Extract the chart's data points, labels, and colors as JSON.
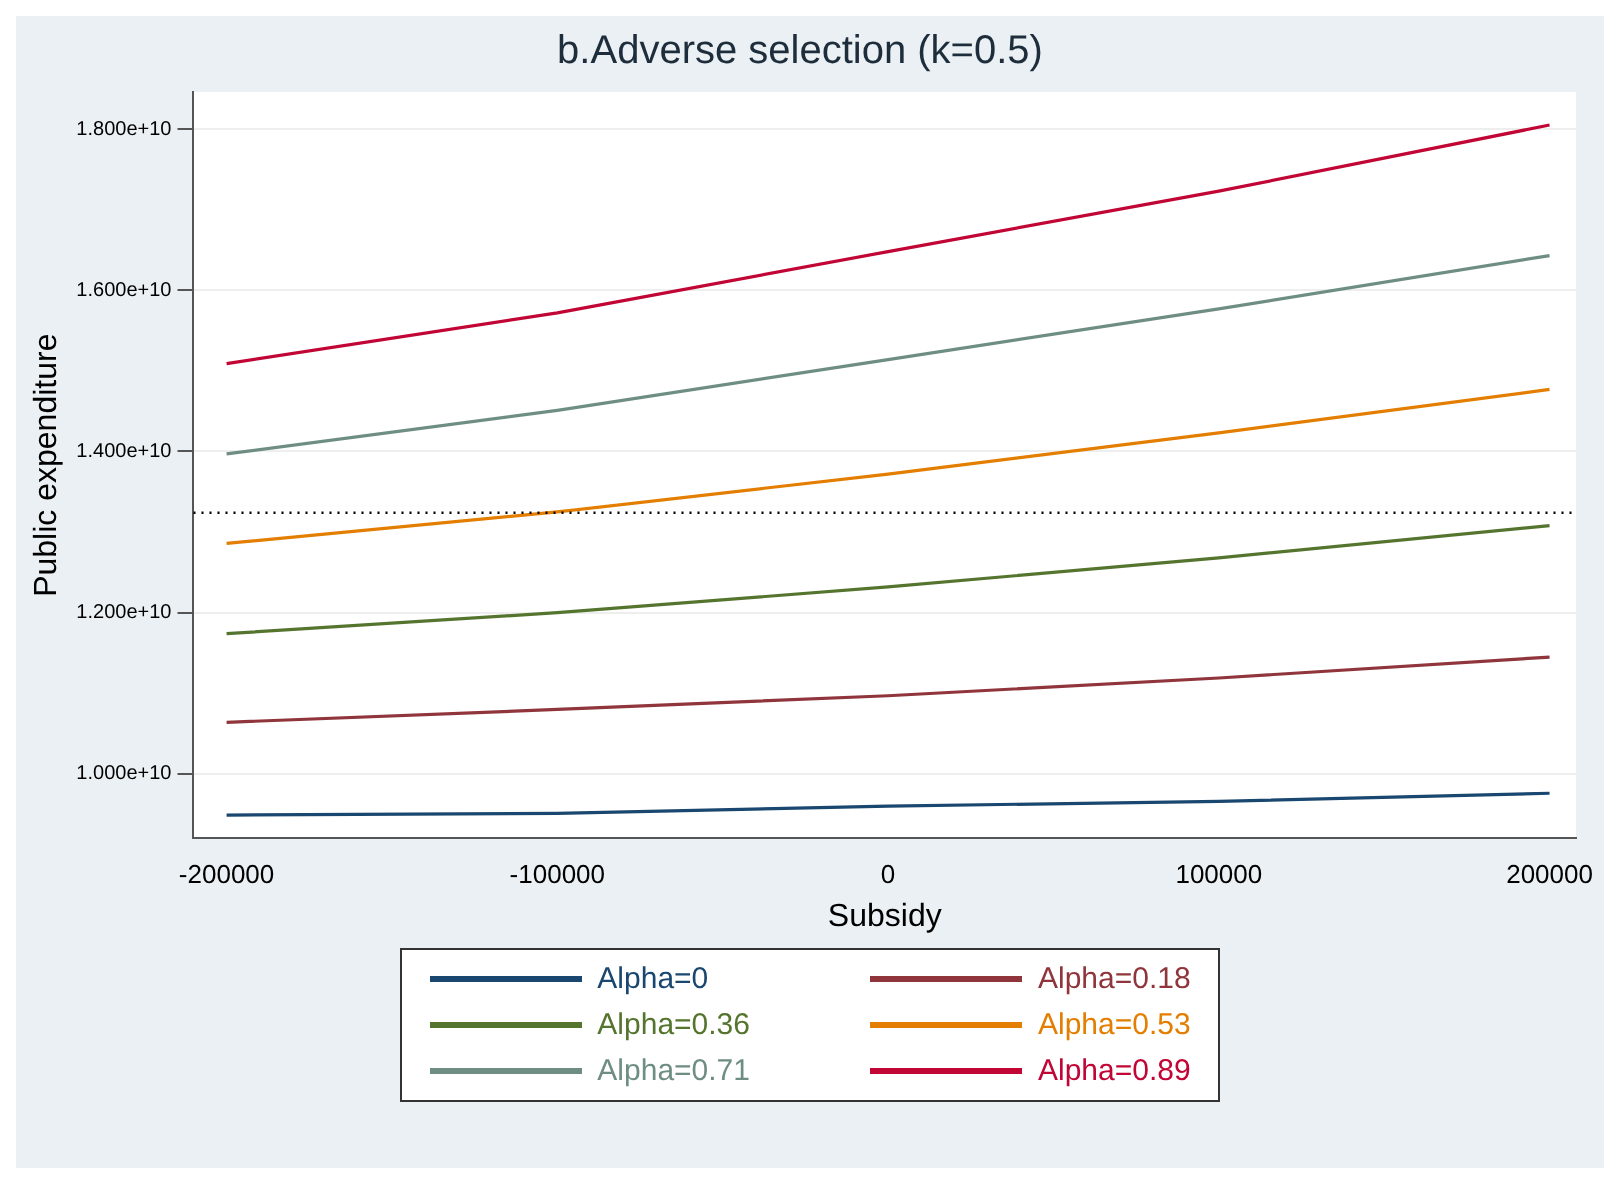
{
  "chart_data": {
    "type": "line",
    "title": "b.Adverse selection (k=0.5)",
    "xlabel": "Subsidy",
    "ylabel": "Public expenditure",
    "x": [
      -200000,
      -100000,
      0,
      100000,
      200000
    ],
    "series": [
      {
        "name": "Alpha=0",
        "color": "#1a476f",
        "values": [
          9490000000,
          9510000000,
          9600000000,
          9660000000,
          9760000000
        ]
      },
      {
        "name": "Alpha=0.18",
        "color": "#90353b",
        "values": [
          10640000000,
          10800000000,
          10970000000,
          11190000000,
          11450000000
        ]
      },
      {
        "name": "Alpha=0.36",
        "color": "#55752f",
        "values": [
          11740000000,
          12000000000,
          12320000000,
          12680000000,
          13080000000
        ]
      },
      {
        "name": "Alpha=0.53",
        "color": "#e37e00",
        "values": [
          12860000000,
          13250000000,
          13720000000,
          14230000000,
          14770000000
        ]
      },
      {
        "name": "Alpha=0.71",
        "color": "#6e8e84",
        "values": [
          13970000000,
          14510000000,
          15140000000,
          15770000000,
          16430000000
        ]
      },
      {
        "name": "Alpha=0.89",
        "color": "#c10534",
        "values": [
          15090000000,
          15720000000,
          16480000000,
          17230000000,
          18050000000
        ]
      }
    ],
    "xlim": [
      -210000,
      208000
    ],
    "xticks": [
      -200000,
      -100000,
      0,
      100000,
      200000
    ],
    "ylim": [
      9200000000,
      18460000000
    ],
    "yticks": [
      {
        "value": 10000000000,
        "label": "1.000e+10"
      },
      {
        "value": 12000000000,
        "label": "1.200e+10"
      },
      {
        "value": 14000000000,
        "label": "1.400e+10"
      },
      {
        "value": 16000000000,
        "label": "1.600e+10"
      },
      {
        "value": 18000000000,
        "label": "1.800e+10"
      }
    ],
    "ref_lines": [
      {
        "axis": "y",
        "value": 13240000000,
        "color": "#000000",
        "line_style": "dotted"
      }
    ],
    "grid": "y",
    "legend": "bottom",
    "marker": "none",
    "line_style": "solid"
  }
}
